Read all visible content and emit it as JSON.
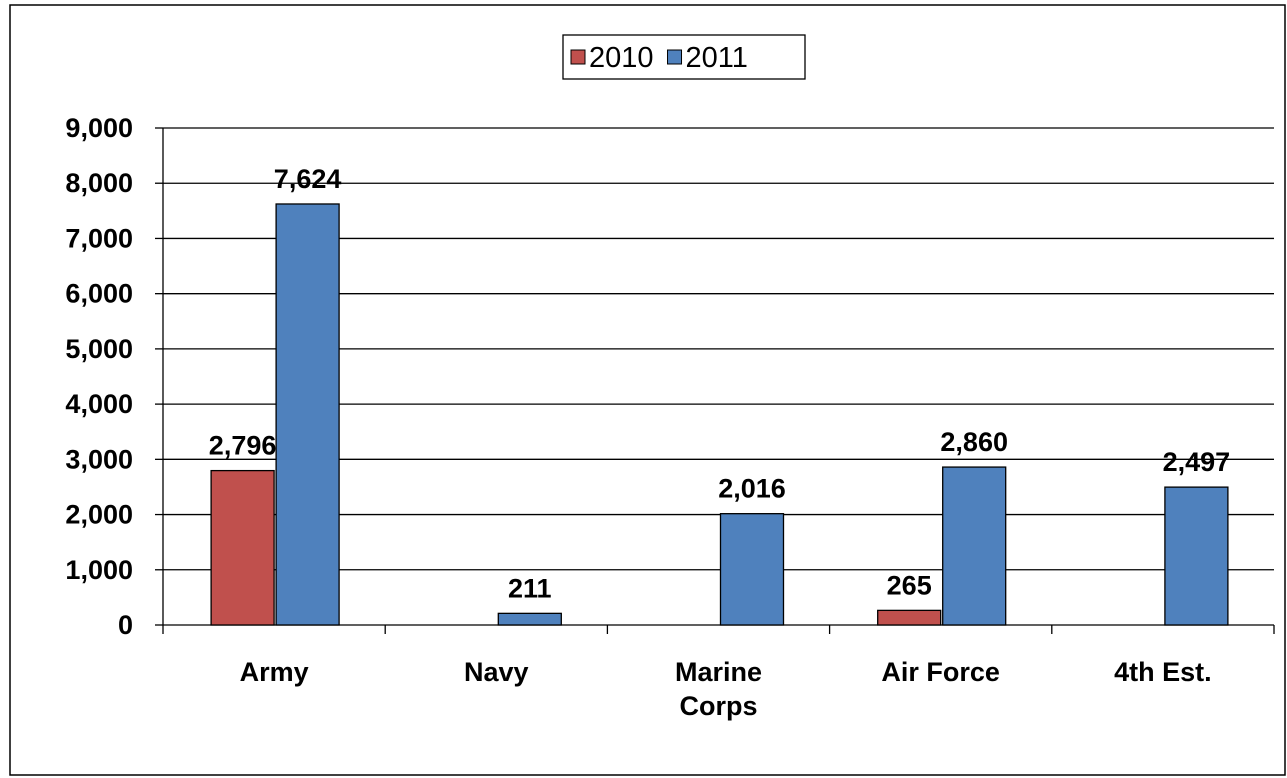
{
  "chart_data": {
    "type": "bar",
    "categories": [
      "Army",
      "Navy",
      "Marine Corps",
      "Air Force",
      "4th Est."
    ],
    "series": [
      {
        "name": "2010",
        "color": "#c0504d",
        "values": [
          2796,
          null,
          null,
          265,
          null
        ],
        "value_labels": [
          "2,796",
          null,
          null,
          "265",
          null
        ]
      },
      {
        "name": "2011",
        "color": "#4f81bd",
        "values": [
          7624,
          211,
          2016,
          2860,
          2497
        ],
        "value_labels": [
          "7,624",
          "211",
          "2,016",
          "2,860",
          "2,497"
        ]
      }
    ],
    "ylim": [
      0,
      9000
    ],
    "yticks": [
      0,
      {
        "value": 1000,
        "label": "1,000"
      },
      {
        "value": 2000,
        "label": "2,000"
      },
      {
        "value": 3000,
        "label": "3,000"
      },
      {
        "value": 4000,
        "label": "4,000"
      },
      {
        "value": 5000,
        "label": "5,000"
      },
      {
        "value": 6000,
        "label": "6,000"
      },
      {
        "value": 7000,
        "label": "7,000"
      },
      {
        "value": 8000,
        "label": "8,000"
      },
      {
        "value": 9000,
        "label": "9,000"
      }
    ],
    "grid": true,
    "legend": "top"
  }
}
